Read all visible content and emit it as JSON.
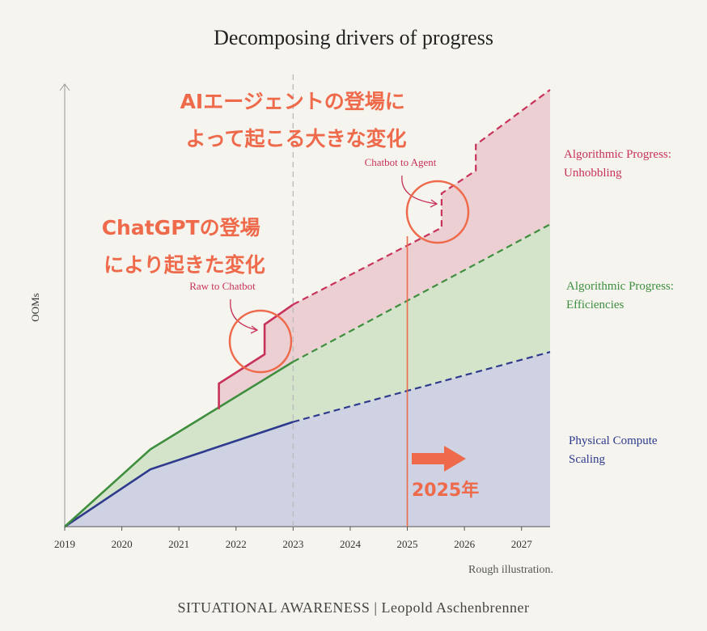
{
  "chart_data": {
    "type": "area",
    "title": "Decomposing drivers of progress",
    "ylabel": "OOMs",
    "xlabel": "",
    "x_ticks": [
      "2019",
      "2020",
      "2021",
      "2022",
      "2023",
      "2024",
      "2025",
      "2026",
      "2027"
    ],
    "xlim": [
      2019,
      2027.5
    ],
    "ylim": [
      0,
      7.7
    ],
    "grid": false,
    "projection_start": 2023,
    "series": [
      {
        "name": "Physical Compute Scaling",
        "color": "#2e3a8c",
        "fill": "#ced2e2",
        "points": [
          [
            2019,
            0
          ],
          [
            2020.5,
            1.0
          ],
          [
            2023,
            1.83
          ],
          [
            2027.5,
            3.05
          ]
        ]
      },
      {
        "name": "Algorithmic Progress: Efficiencies",
        "color": "#3e8e3e",
        "fill": "#d3e4cb",
        "points": [
          [
            2019,
            0
          ],
          [
            2020.5,
            1.35
          ],
          [
            2023,
            2.88
          ],
          [
            2027.5,
            5.28
          ]
        ]
      },
      {
        "name": "Algorithmic Progress: Unhobbling",
        "color": "#c8325a",
        "fill": "#eccfd3",
        "points": [
          [
            2021.7,
            2.05
          ],
          [
            2021.7,
            2.5
          ],
          [
            2022.5,
            3.01
          ],
          [
            2022.5,
            3.53
          ],
          [
            2023,
            3.88
          ],
          [
            2025.6,
            5.22
          ],
          [
            2025.6,
            5.82
          ],
          [
            2026.2,
            6.22
          ],
          [
            2026.2,
            6.67
          ],
          [
            2027.5,
            7.63
          ]
        ]
      }
    ],
    "annotations": [
      {
        "text": "Raw to Chatbot",
        "x": 2022.3,
        "color": "#c8325a"
      },
      {
        "text": "Chatbot to Agent",
        "x": 2025.6,
        "color": "#c8325a"
      },
      {
        "text": "Rough illustration.",
        "color": "#555555"
      }
    ]
  },
  "overlay": {
    "note_agent_line1": "AIエージェントの登場に",
    "note_agent_line2": "よって起こる大きな変化",
    "note_chatgpt_line1": "ChatGPTの登場",
    "note_chatgpt_line2": "により起きた変化",
    "year_marker_label": "2025年",
    "year_marker_x": 2025,
    "accent_color": "#ee6a4b"
  },
  "footer": "SITUATIONAL AWARENESS | Leopold Aschenbrenner"
}
